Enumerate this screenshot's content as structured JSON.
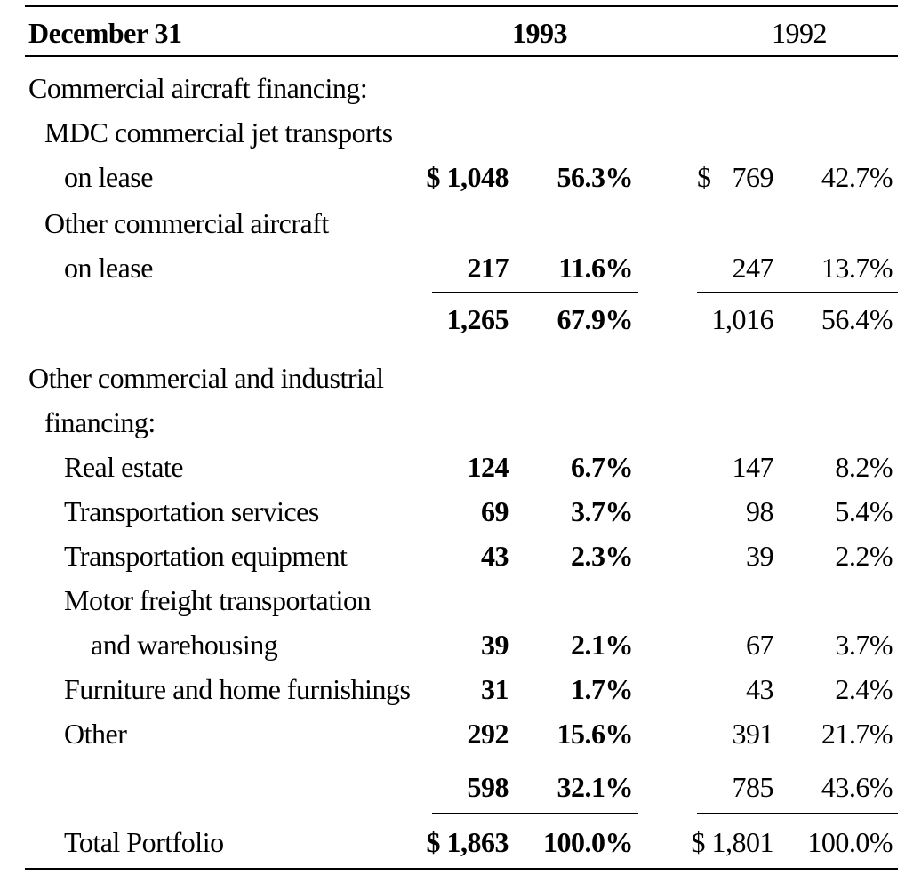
{
  "header": {
    "label": "December 31",
    "year_1993": "1993",
    "year_1992": "1992"
  },
  "rows": [
    {
      "label": "Commercial aircraft financing:"
    },
    {
      "label": "MDC commercial jet transports"
    },
    {
      "label": "on lease",
      "v93": "$ 1,048",
      "p93": "56.3%",
      "d92": "$",
      "v92": "769",
      "p92": "42.7%"
    },
    {
      "label": "Other commercial aircraft"
    },
    {
      "label": "on lease",
      "v93": "217",
      "p93": "11.6%",
      "v92": "247",
      "p92": "13.7%"
    },
    {
      "label": "",
      "v93": "1,265",
      "p93": "67.9%",
      "v92": "1,016",
      "p92": "56.4%"
    },
    {
      "label": "Other commercial and industrial"
    },
    {
      "label": "financing:"
    },
    {
      "label": "Real estate",
      "v93": "124",
      "p93": "6.7%",
      "v92": "147",
      "p92": "8.2%"
    },
    {
      "label": "Transportation services",
      "v93": "69",
      "p93": "3.7%",
      "v92": "98",
      "p92": "5.4%"
    },
    {
      "label": "Transportation equipment",
      "v93": "43",
      "p93": "2.3%",
      "v92": "39",
      "p92": "2.2%"
    },
    {
      "label": "Motor freight transportation"
    },
    {
      "label": "and warehousing",
      "v93": "39",
      "p93": "2.1%",
      "v92": "67",
      "p92": "3.7%"
    },
    {
      "label": "Furniture and home furnishings",
      "v93": "31",
      "p93": "1.7%",
      "v92": "43",
      "p92": "2.4%"
    },
    {
      "label": "Other",
      "v93": "292",
      "p93": "15.6%",
      "v92": "391",
      "p92": "21.7%"
    },
    {
      "label": "",
      "v93": "598",
      "p93": "32.1%",
      "v92": "785",
      "p92": "43.6%"
    },
    {
      "label": "Total Portfolio",
      "v93": "$ 1,863",
      "p93": "100.0%",
      "v92": "$ 1,801",
      "p92": "100.0%"
    }
  ]
}
